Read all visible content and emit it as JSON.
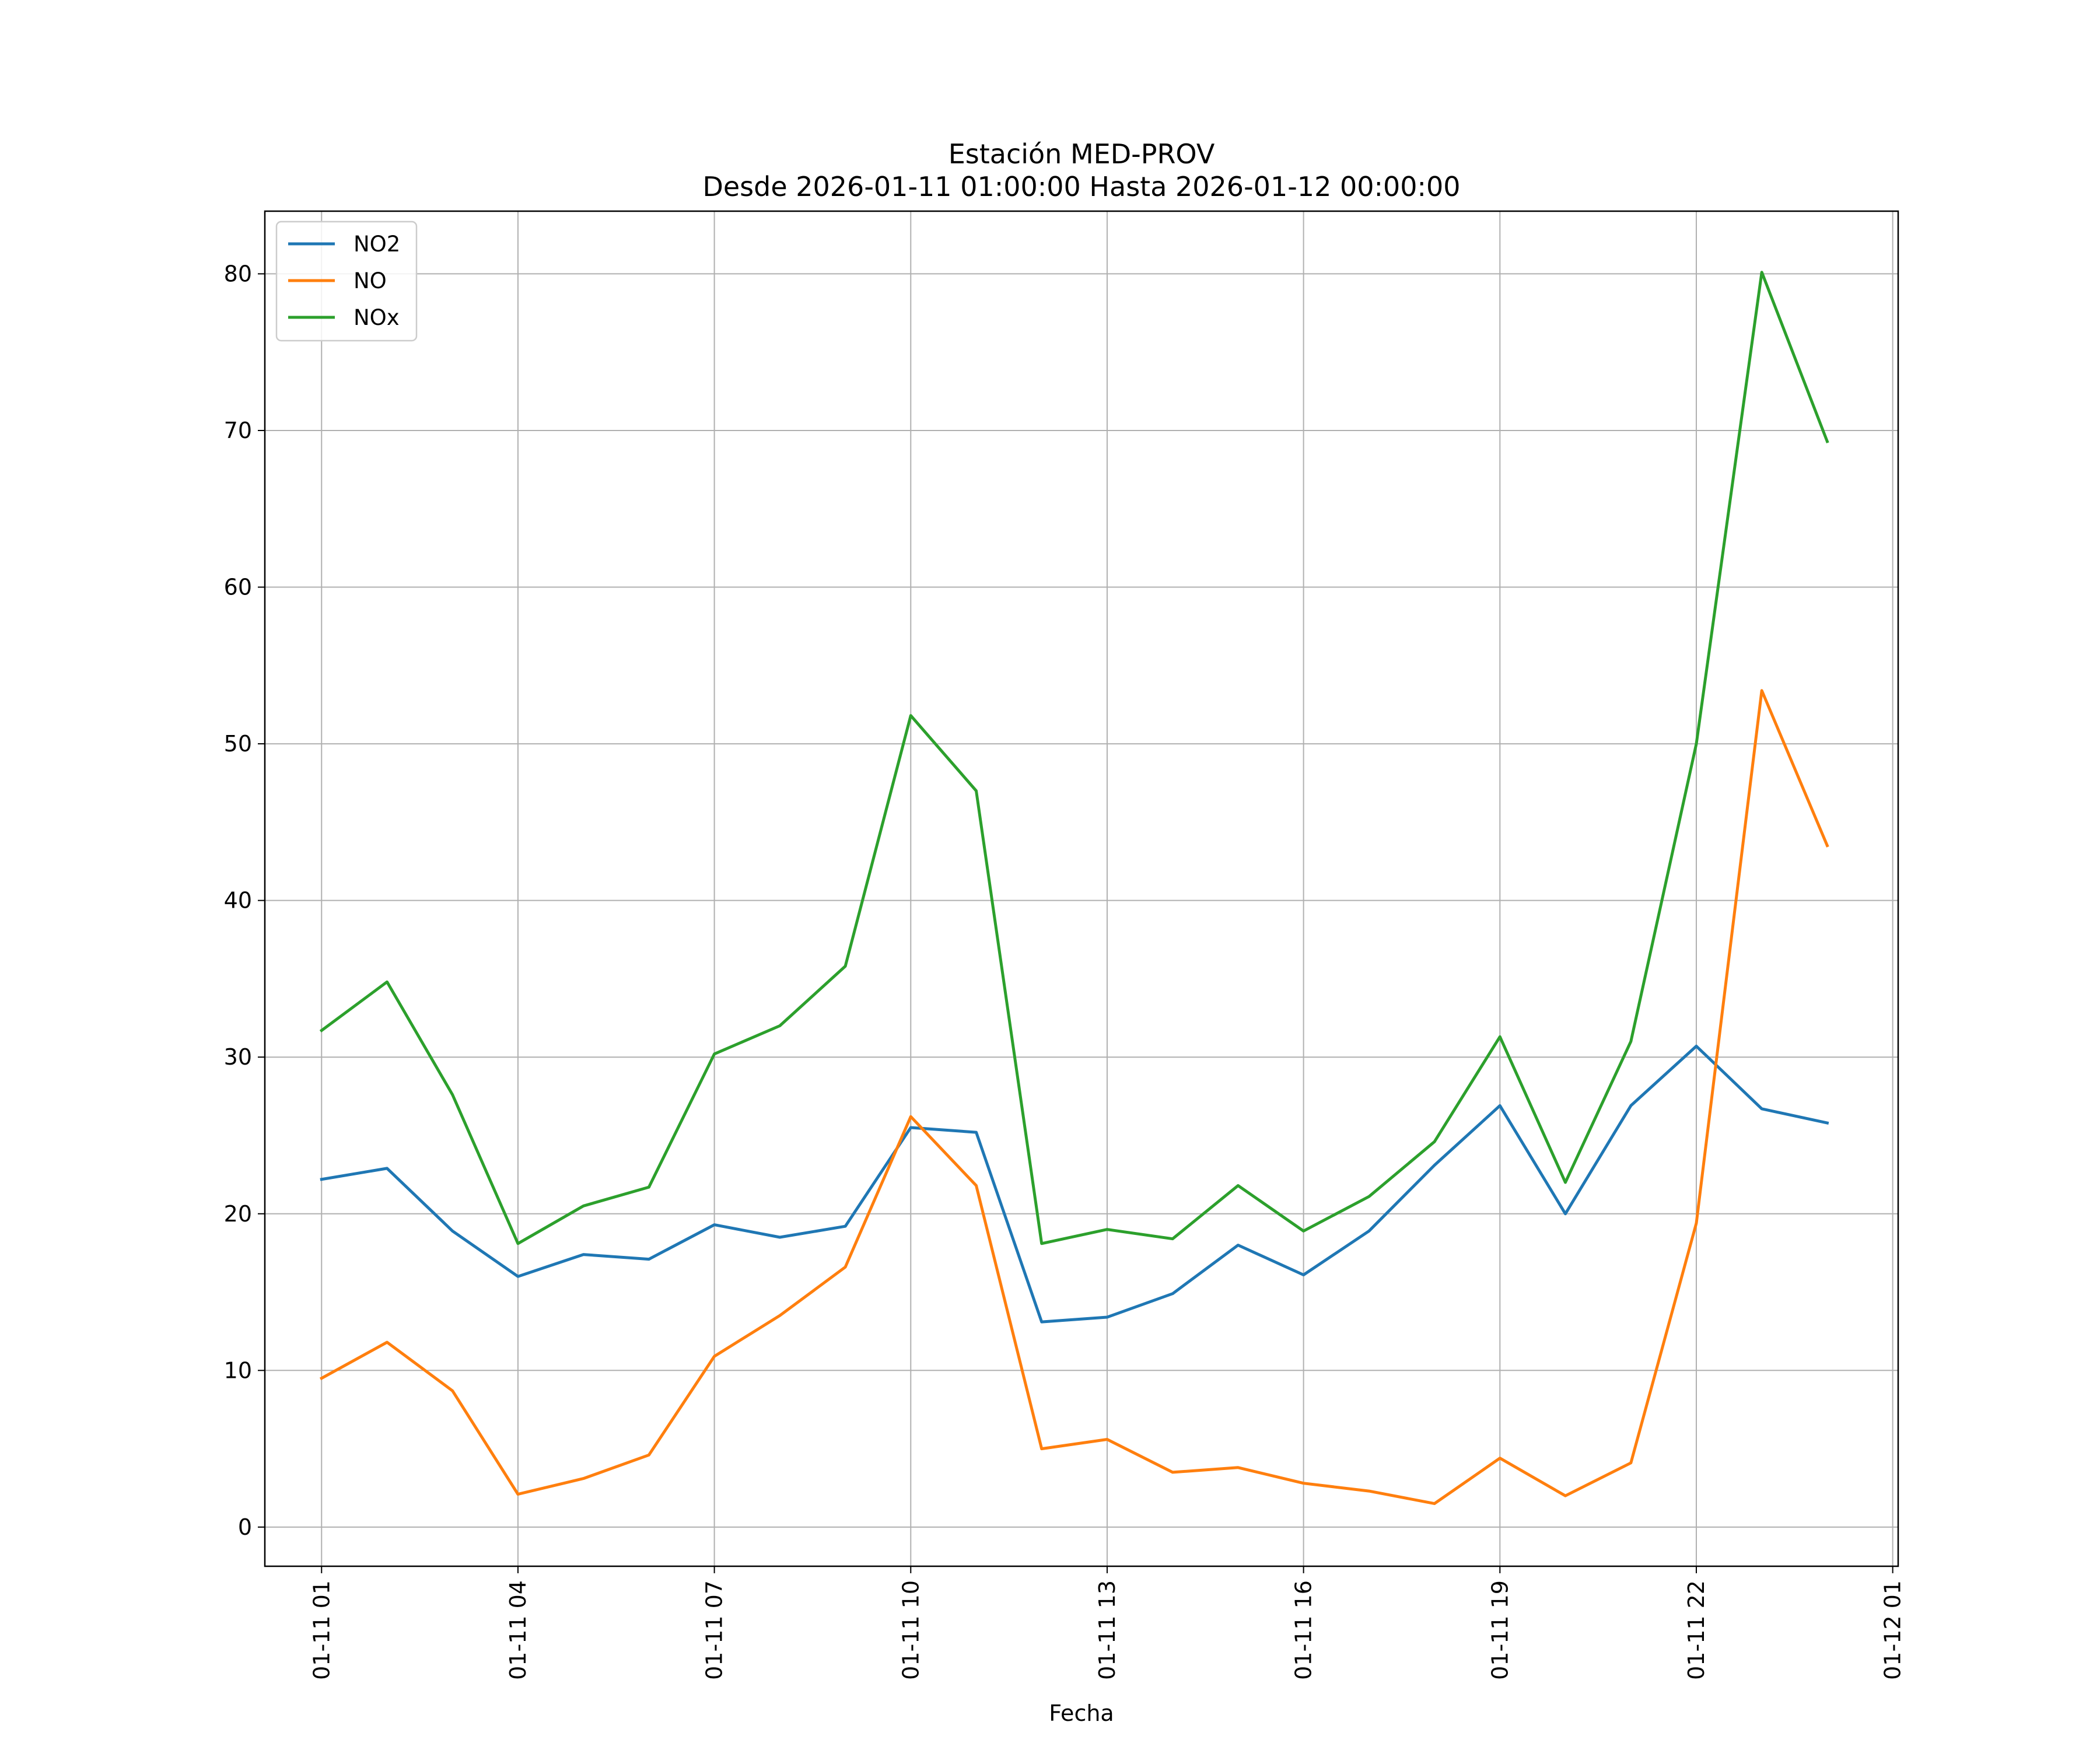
{
  "chart_data": {
    "type": "line",
    "title": "Estación MED-PROV",
    "subtitle": "Desde 2026-01-11 01:00:00 Hasta 2026-01-12 00:00:00",
    "xlabel": "Fecha",
    "ylabel": "",
    "x": [
      "2026-01-11 01:00",
      "2026-01-11 02:00",
      "2026-01-11 03:00",
      "2026-01-11 04:00",
      "2026-01-11 05:00",
      "2026-01-11 06:00",
      "2026-01-11 07:00",
      "2026-01-11 08:00",
      "2026-01-11 09:00",
      "2026-01-11 10:00",
      "2026-01-11 11:00",
      "2026-01-11 12:00",
      "2026-01-11 13:00",
      "2026-01-11 14:00",
      "2026-01-11 15:00",
      "2026-01-11 16:00",
      "2026-01-11 17:00",
      "2026-01-11 18:00",
      "2026-01-11 19:00",
      "2026-01-11 20:00",
      "2026-01-11 21:00",
      "2026-01-11 22:00",
      "2026-01-11 23:00",
      "2026-01-12 00:00"
    ],
    "xlim": [
      "2026-01-11 00:08",
      "2026-01-12 01:05"
    ],
    "xticks": [
      "01-11 01",
      "01-11 04",
      "01-11 07",
      "01-11 10",
      "01-11 13",
      "01-11 16",
      "01-11 19",
      "01-11 22",
      "01-12 01"
    ],
    "xtick_values": [
      "2026-01-11 01:00",
      "2026-01-11 04:00",
      "2026-01-11 07:00",
      "2026-01-11 10:00",
      "2026-01-11 13:00",
      "2026-01-11 16:00",
      "2026-01-11 19:00",
      "2026-01-11 22:00",
      "2026-01-12 01:00"
    ],
    "ylim": [
      -2.5,
      84
    ],
    "yticks": [
      0,
      10,
      20,
      30,
      40,
      50,
      60,
      70,
      80
    ],
    "grid": true,
    "legend": "top-left",
    "series": [
      {
        "name": "NO2",
        "color": "#1f77b4",
        "values": [
          22.2,
          22.9,
          18.9,
          16.0,
          17.4,
          17.1,
          19.3,
          18.5,
          19.2,
          25.5,
          25.2,
          13.1,
          13.4,
          14.9,
          18.0,
          16.1,
          18.9,
          23.1,
          26.9,
          20.0,
          26.9,
          30.7,
          26.7,
          25.8
        ]
      },
      {
        "name": "NO",
        "color": "#ff7f0e",
        "values": [
          9.5,
          11.8,
          8.7,
          2.1,
          3.1,
          4.6,
          10.9,
          13.5,
          16.6,
          26.2,
          21.8,
          5.0,
          5.6,
          3.5,
          3.8,
          2.8,
          2.3,
          1.5,
          4.4,
          2.0,
          4.1,
          19.4,
          53.4,
          43.5
        ]
      },
      {
        "name": "NOx",
        "color": "#2ca02c",
        "values": [
          31.7,
          34.8,
          27.6,
          18.1,
          20.5,
          21.7,
          30.2,
          32.0,
          35.8,
          51.8,
          47.0,
          18.1,
          19.0,
          18.4,
          21.8,
          18.9,
          21.1,
          24.6,
          31.3,
          22.0,
          31.0,
          50.0,
          80.1,
          69.3
        ]
      }
    ]
  }
}
